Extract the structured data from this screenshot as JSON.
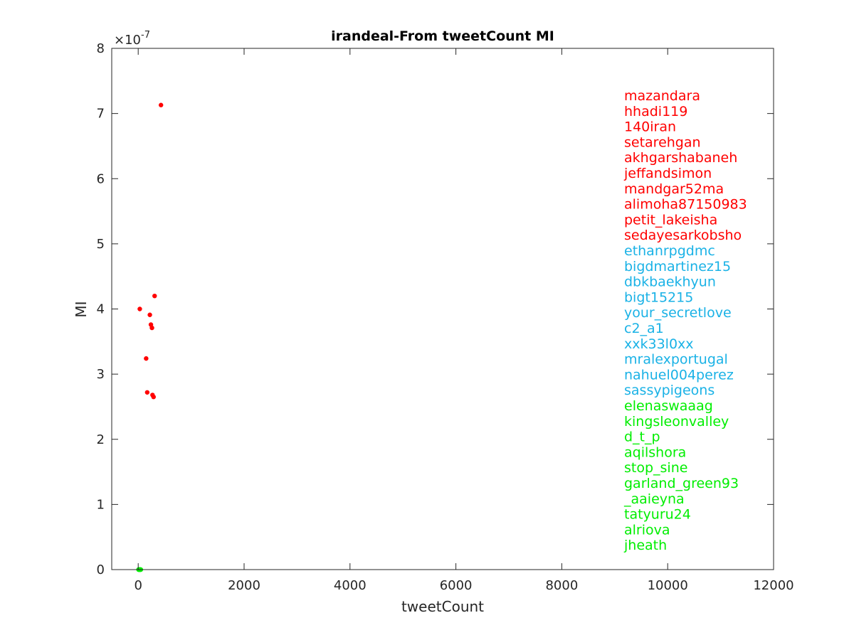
{
  "chart_data": {
    "type": "scatter",
    "title": "irandeal-From tweetCount MI",
    "xlabel": "tweetCount",
    "ylabel": "MI",
    "xlim": [
      -500,
      12000
    ],
    "ylim": [
      0,
      8e-07
    ],
    "xticks": [
      0,
      2000,
      4000,
      6000,
      8000,
      10000,
      12000
    ],
    "yticks": [
      0,
      1,
      2,
      3,
      4,
      5,
      6,
      7,
      8
    ],
    "y_multiplier_label": "×10",
    "y_multiplier_exponent": "-7",
    "y_scale": 1e-07,
    "grid": false,
    "colors": {
      "top_mi": "#ff0000",
      "middle": "#1ab2e6",
      "bottom": "#00ee00",
      "other": "#333333"
    },
    "series": [
      {
        "color_key": "top_mi",
        "points": [
          [
            430,
            7.13e-07
          ],
          [
            310,
            4.2e-07
          ],
          [
            30,
            4e-07
          ],
          [
            220,
            3.91e-07
          ],
          [
            240,
            3.76e-07
          ],
          [
            260,
            3.71e-07
          ],
          [
            150,
            3.24e-07
          ],
          [
            170,
            2.72e-07
          ],
          [
            270,
            2.68e-07
          ],
          [
            290,
            2.65e-07
          ]
        ]
      },
      {
        "color_key": "bottom",
        "points": [
          [
            5,
            0.0
          ],
          [
            10,
            0.0
          ],
          [
            15,
            0.0
          ],
          [
            20,
            0.0
          ],
          [
            25,
            0.0
          ],
          [
            30,
            0.0
          ],
          [
            35,
            0.0
          ],
          [
            40,
            0.0
          ],
          [
            45,
            0.0
          ],
          [
            50,
            0.0
          ]
        ]
      }
    ],
    "legend_placement": "right",
    "legend": [
      {
        "label": "mazandara",
        "color_key": "top_mi"
      },
      {
        "label": "hhadi119",
        "color_key": "top_mi"
      },
      {
        "label": "140iran",
        "color_key": "top_mi"
      },
      {
        "label": "setarehgan",
        "color_key": "top_mi"
      },
      {
        "label": "akhgarshabaneh",
        "color_key": "top_mi"
      },
      {
        "label": "jeffandsimon",
        "color_key": "top_mi"
      },
      {
        "label": "mandgar52ma",
        "color_key": "top_mi"
      },
      {
        "label": "alimoha87150983",
        "color_key": "top_mi"
      },
      {
        "label": "petit_lakeisha",
        "color_key": "top_mi"
      },
      {
        "label": "sedayesarkobsho",
        "color_key": "top_mi"
      },
      {
        "label": "ethanrpgdmc",
        "color_key": "middle"
      },
      {
        "label": "bigdmartinez15",
        "color_key": "middle"
      },
      {
        "label": "dbkbaekhyun",
        "color_key": "middle"
      },
      {
        "label": "bigt15215",
        "color_key": "middle"
      },
      {
        "label": "your_secretlove",
        "color_key": "middle"
      },
      {
        "label": "c2_a1",
        "color_key": "middle"
      },
      {
        "label": "xxk33l0xx",
        "color_key": "middle"
      },
      {
        "label": "mralexportugal",
        "color_key": "middle"
      },
      {
        "label": "nahuel004perez",
        "color_key": "middle"
      },
      {
        "label": "sassypigeons",
        "color_key": "middle"
      },
      {
        "label": "elenaswaaag",
        "color_key": "bottom"
      },
      {
        "label": "kingsleonvalley",
        "color_key": "bottom"
      },
      {
        "label": "d_t_p",
        "color_key": "bottom"
      },
      {
        "label": "aqilshora",
        "color_key": "bottom"
      },
      {
        "label": "stop_sine",
        "color_key": "bottom"
      },
      {
        "label": "garland_green93",
        "color_key": "bottom"
      },
      {
        "label": "_aaieyna",
        "color_key": "bottom"
      },
      {
        "label": "tatyuru24",
        "color_key": "bottom"
      },
      {
        "label": "alriova",
        "color_key": "bottom"
      },
      {
        "label": "jheath",
        "color_key": "bottom"
      }
    ]
  }
}
